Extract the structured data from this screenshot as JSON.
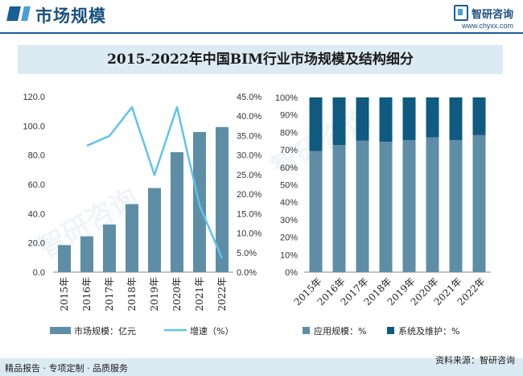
{
  "header": {
    "title": "市场规模",
    "logo_text": "智研咨询",
    "logo_url": "www.chyxx.com"
  },
  "chart_title": "2015-2022年中国BIM行业市场规模及结构细分",
  "chart_data": [
    {
      "type": "bar+line",
      "categories": [
        "2015年",
        "2016年",
        "2017年",
        "2018年",
        "2019年",
        "2020年",
        "2021年",
        "2022年"
      ],
      "series": [
        {
          "name": "市场规模：亿元",
          "type": "bar",
          "axis": "left",
          "values": [
            18.5,
            24.5,
            32.6,
            46.5,
            57.5,
            82.0,
            95.8,
            99.2
          ]
        },
        {
          "name": "增速（%）",
          "type": "line",
          "axis": "right",
          "values": [
            null,
            32.4,
            34.9,
            42.3,
            24.9,
            42.3,
            17.1,
            3.5
          ]
        }
      ],
      "ylim_left": [
        0,
        120
      ],
      "yticks_left": [
        "0.0",
        "20.0",
        "40.0",
        "60.0",
        "80.0",
        "100.0",
        "120.0"
      ],
      "ylim_right": [
        0,
        45
      ],
      "yticks_right": [
        "0.0%",
        "5.0%",
        "10.0%",
        "15.0%",
        "20.0%",
        "25.0%",
        "30.0%",
        "35.0%",
        "40.0%",
        "45.0%"
      ],
      "legend": [
        "市场规模：亿元",
        "增速（%）"
      ]
    },
    {
      "type": "stacked-bar-100",
      "categories": [
        "2015年",
        "2016年",
        "2017年",
        "2018年",
        "2019年",
        "2020年",
        "2021年",
        "2022年"
      ],
      "series": [
        {
          "name": "应用规模：%",
          "values": [
            69.3,
            72.8,
            75.2,
            74.6,
            75.6,
            77.2,
            75.6,
            78.4
          ]
        },
        {
          "name": "系统及维护：%",
          "values": [
            30.7,
            27.2,
            24.8,
            25.4,
            24.4,
            22.8,
            24.4,
            21.6
          ]
        }
      ],
      "ylim": [
        0,
        100
      ],
      "yticks": [
        "0%",
        "10%",
        "20%",
        "30%",
        "40%",
        "50%",
        "60%",
        "70%",
        "80%",
        "90%",
        "100%"
      ],
      "legend": [
        "应用规模：%",
        "系统及维护：%"
      ]
    }
  ],
  "colors": {
    "bar": "#5e8ea6",
    "line": "#5ec4ea",
    "stack_bottom": "#5e8ea6",
    "stack_top": "#0f5a80",
    "axis_text": "#333333"
  },
  "footer": {
    "left": "精品报告 · 专项定制 · 品质服务",
    "right": "资料来源：智研咨询"
  }
}
